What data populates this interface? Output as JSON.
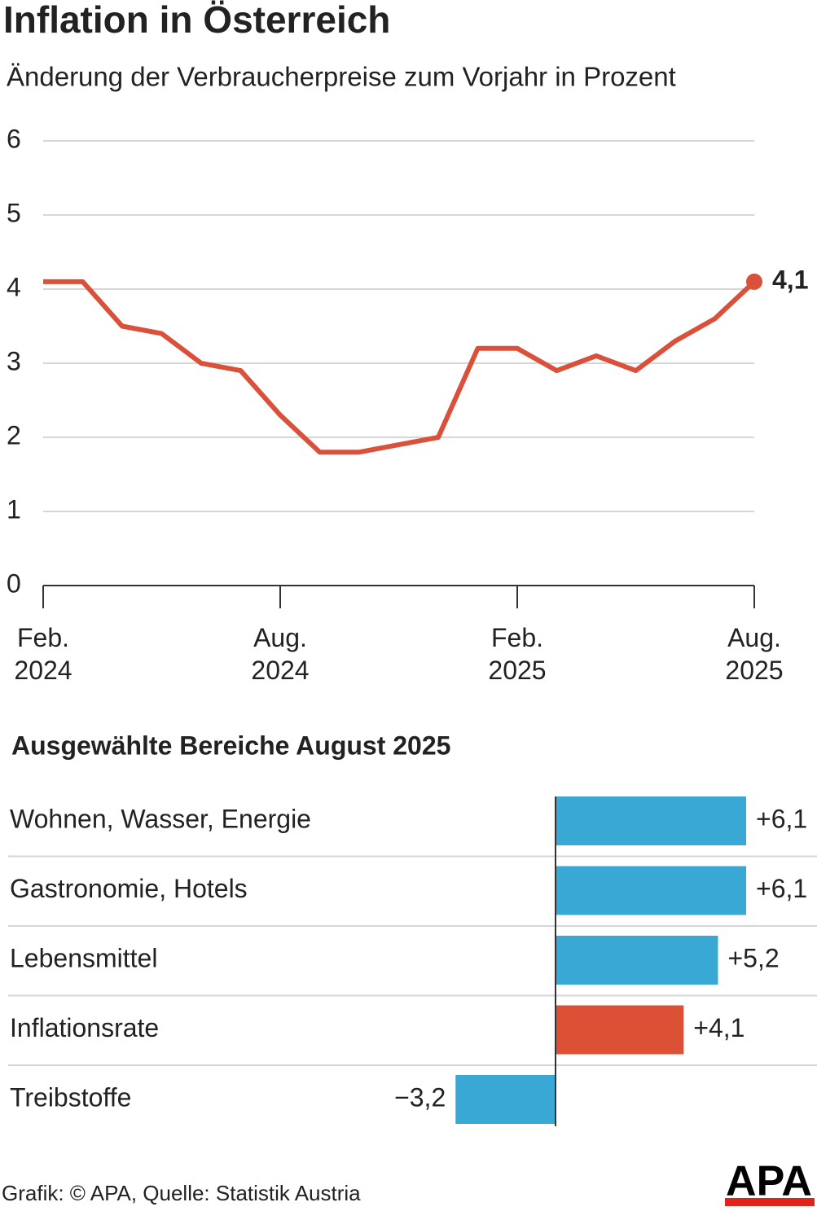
{
  "chart_data": [
    {
      "type": "line",
      "title": "Inflation in Österreich",
      "subtitle": "Änderung der Verbraucherpreise zum Vorjahr in Prozent",
      "categories": [
        "Feb.\n2024",
        null,
        null,
        null,
        null,
        null,
        "Aug.\n2024",
        null,
        null,
        null,
        null,
        null,
        "Feb.\n2025",
        null,
        null,
        null,
        null,
        null,
        "Aug.\n2025"
      ],
      "values": [
        4.1,
        4.1,
        3.5,
        3.4,
        3.0,
        2.9,
        2.3,
        1.8,
        1.8,
        1.9,
        2.0,
        3.2,
        3.2,
        2.9,
        3.1,
        2.9,
        3.3,
        3.6,
        4.1
      ],
      "value_labels": [
        null,
        null,
        null,
        null,
        null,
        null,
        null,
        null,
        null,
        null,
        null,
        null,
        null,
        null,
        null,
        null,
        null,
        null,
        "4,1"
      ],
      "color": "#d9513a",
      "ylim": [
        0,
        6
      ],
      "yticks": [
        0,
        1,
        2,
        3,
        4,
        5,
        6
      ],
      "grid": true
    },
    {
      "type": "hbar",
      "title": "Ausgewählte Bereiche August 2025",
      "categories": [
        "Wohnen, Wasser, Energie",
        "Gastronomie, Hotels",
        "Lebensmittel",
        "Inflationsrate",
        "Treibstoffe"
      ],
      "values": [
        6.1,
        6.1,
        5.2,
        4.1,
        -3.2
      ],
      "value_labels": [
        "+6,1",
        "+6,1",
        "+5,2",
        "+4,1",
        "−3,2"
      ],
      "colors": [
        "#3aa8d5",
        "#3aa8d5",
        "#3aa8d5",
        "#dc5036",
        "#3aa8d5"
      ]
    }
  ],
  "source": "Grafik: © APA, Quelle: Statistik Austria",
  "logo": "APA"
}
